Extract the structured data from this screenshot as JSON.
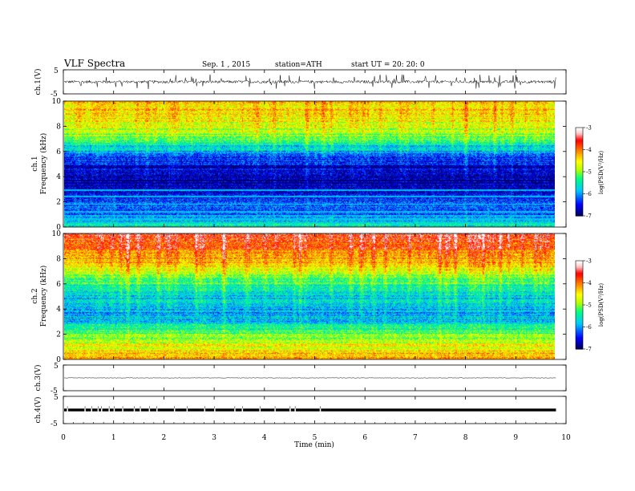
{
  "header": {
    "title": "VLF  Spectra",
    "date": "Sep. 1  , 2015",
    "station": "station=ATH",
    "start": "start  UT  =    20: 20: 0"
  },
  "colors": {
    "colormap": [
      "#000066",
      "#0000ff",
      "#00c8ff",
      "#00ff80",
      "#b4ff00",
      "#ffff00",
      "#ff8000",
      "#ff0000",
      "#ffc8c8",
      "#ffffff"
    ]
  },
  "chart_data": [
    {
      "type": "line",
      "panel": "ch1-waveform",
      "ylabel": "ch.1(V)",
      "ylim": [
        -5,
        5
      ],
      "yticks": [
        "5",
        "-5"
      ],
      "x_range": [
        0,
        9.8
      ],
      "baseline": 0,
      "noise_amplitude": 0.6,
      "spike_amplitude": 3
    },
    {
      "type": "heatmap",
      "panel": "ch1-spectrogram",
      "ylabel": "ch.1\nFrequency  (kHz)",
      "ylabel_lines": [
        "ch.1",
        "Frequency  (kHz)"
      ],
      "ylim": [
        0,
        10
      ],
      "yticks": [
        "0",
        "2",
        "4",
        "6",
        "8",
        "10"
      ],
      "x_range": [
        0,
        9.8
      ],
      "colorbar": {
        "label": "log(PSD(V²/Hz)",
        "range": [
          -7,
          -3
        ],
        "ticks": [
          "-3",
          "-4",
          "-5",
          "-6",
          "-7"
        ]
      },
      "profile_by_freq_khz": [
        [
          0,
          -5.6
        ],
        [
          1,
          -6.2
        ],
        [
          2,
          -6.4
        ],
        [
          3,
          -6.8
        ],
        [
          4,
          -6.9
        ],
        [
          5,
          -6.6
        ],
        [
          6,
          -6.0
        ],
        [
          7,
          -5.3
        ],
        [
          8,
          -4.8
        ],
        [
          9,
          -4.5
        ],
        [
          10,
          -4.4
        ]
      ],
      "constant_lines_khz": [
        0.3,
        0.6,
        0.9,
        1.2,
        1.8,
        2.4,
        2.9
      ]
    },
    {
      "type": "heatmap",
      "panel": "ch2-spectrogram",
      "ylabel": "ch.2\nFrequency  (kHz)",
      "ylabel_lines": [
        "ch.2",
        "Frequency  (kHz)"
      ],
      "ylim": [
        0,
        10
      ],
      "yticks": [
        "0",
        "2",
        "4",
        "6",
        "8",
        "10"
      ],
      "x_range": [
        0,
        9.8
      ],
      "colorbar": {
        "label": "log(PSD(V²/Hz)",
        "range": [
          -7,
          -3
        ],
        "ticks": [
          "-3",
          "-4",
          "-5",
          "-6",
          "-7"
        ]
      },
      "profile_by_freq_khz": [
        [
          0,
          -4.2
        ],
        [
          1,
          -4.6
        ],
        [
          2,
          -5.2
        ],
        [
          3,
          -5.8
        ],
        [
          4,
          -6.0
        ],
        [
          5,
          -5.8
        ],
        [
          6,
          -5.4
        ],
        [
          7,
          -4.8
        ],
        [
          8,
          -4.3
        ],
        [
          9,
          -3.9
        ],
        [
          10,
          -3.7
        ]
      ]
    },
    {
      "type": "line",
      "panel": "ch3-waveform",
      "ylabel": "ch.3(V)",
      "ylim": [
        -5,
        5
      ],
      "yticks": [
        "5",
        "-5"
      ],
      "x_range": [
        0,
        9.8
      ],
      "baseline": 0,
      "noise_amplitude": 0.08
    },
    {
      "type": "line",
      "panel": "ch4-waveform",
      "ylabel": "ch.4(V)",
      "ylim": [
        -5,
        5
      ],
      "yticks": [
        "5",
        "-5"
      ],
      "x_range": [
        0,
        9.8
      ],
      "baseline": 0,
      "band_half_width": 0.5,
      "pulse_times_min": [
        0.07,
        0.42,
        0.55,
        0.68,
        0.75,
        0.9,
        1.0,
        1.17,
        1.4,
        1.52,
        1.7,
        1.85,
        2.2,
        2.45,
        2.8,
        3.0,
        3.4,
        3.55,
        3.9,
        4.2,
        4.5,
        4.6,
        5.1
      ]
    }
  ],
  "xaxis": {
    "label": "Time  (min)",
    "ticks": [
      "0",
      "1",
      "2",
      "3",
      "4",
      "5",
      "6",
      "7",
      "8",
      "9",
      "10"
    ],
    "range": [
      0,
      10
    ]
  }
}
